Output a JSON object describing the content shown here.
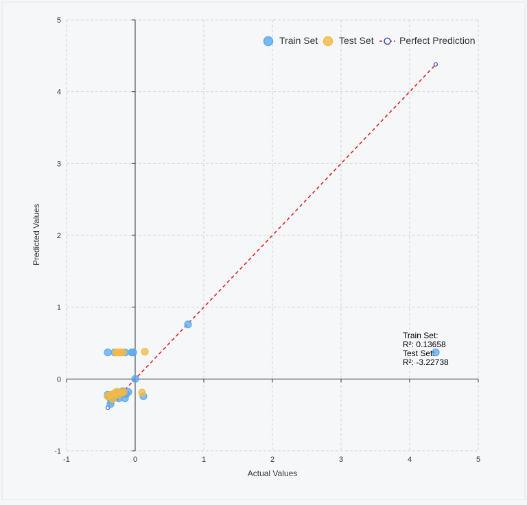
{
  "chart_data": {
    "type": "scatter",
    "xlabel": "Actual Values",
    "ylabel": "Predicted Values",
    "xlim": [
      -1,
      5
    ],
    "ylim": [
      -1,
      5
    ],
    "xticks": [
      "-1",
      "0",
      "1",
      "2",
      "3",
      "4",
      "5"
    ],
    "yticks": [
      "-1",
      "0",
      "1",
      "2",
      "3",
      "4",
      "5"
    ],
    "grid": true,
    "legend_position": "top-right",
    "colors": {
      "train": "#5aa9f0",
      "test": "#f5b942",
      "perfect_line": "#e02020",
      "perfect_marker": "#3b4cc0",
      "background": "#f6f7f9"
    },
    "legend": [
      {
        "label": "Train Set",
        "series": "train"
      },
      {
        "label": "Test Set",
        "series": "test"
      },
      {
        "label": "Perfect Prediction",
        "series": "perfect"
      }
    ],
    "series": [
      {
        "name": "Train Set",
        "key": "train",
        "x": [
          -0.4,
          -0.3,
          -0.15,
          -0.05,
          -0.03,
          0.77,
          4.38,
          -0.38,
          -0.35,
          -0.32,
          -0.3,
          -0.28,
          -0.26,
          -0.25,
          -0.24,
          -0.22,
          -0.2,
          -0.18,
          -0.15,
          -0.13,
          -0.1,
          0.0,
          0.12,
          -0.4,
          -0.36
        ],
        "y": [
          0.37,
          0.37,
          0.37,
          0.37,
          0.37,
          0.76,
          0.37,
          -0.25,
          -0.3,
          -0.22,
          -0.2,
          -0.25,
          -0.18,
          -0.2,
          -0.27,
          -0.22,
          -0.19,
          -0.17,
          -0.27,
          -0.21,
          -0.18,
          0.0,
          -0.24,
          -0.22,
          -0.35
        ]
      },
      {
        "name": "Test Set",
        "key": "test",
        "x": [
          -0.28,
          -0.25,
          -0.22,
          -0.18,
          0.14,
          -0.4,
          -0.36,
          -0.3,
          -0.27,
          -0.24,
          -0.2,
          -0.17,
          0.1,
          -0.33
        ],
        "y": [
          0.37,
          0.37,
          0.37,
          0.37,
          0.38,
          -0.24,
          -0.22,
          -0.2,
          -0.18,
          -0.22,
          -0.19,
          -0.18,
          -0.19,
          -0.28
        ]
      },
      {
        "name": "Perfect Prediction",
        "key": "perfect",
        "x": [
          -0.4,
          4.38
        ],
        "y": [
          -0.4,
          4.38
        ]
      }
    ],
    "annotation": {
      "lines": [
        "Train Set:",
        "R²: 0.13658",
        "Test Set:",
        "R²: -3.22738"
      ],
      "x": 3.9,
      "y": 0.62
    }
  }
}
